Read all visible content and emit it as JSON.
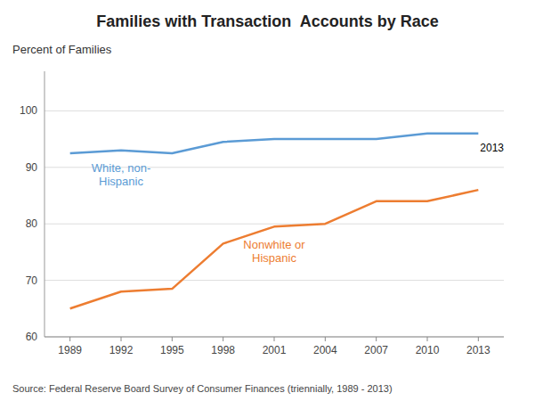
{
  "chart_data": {
    "type": "line",
    "title": "Families with Transaction  Accounts by Race",
    "y_label": "Percent of Families",
    "source": "Source: Federal Reserve Board Survey of Consumer Finances (triennially, 1989 - 2013)",
    "annotations": [
      "2013"
    ],
    "x": [
      1989,
      1992,
      1995,
      1998,
      2001,
      2004,
      2007,
      2010,
      2013
    ],
    "series": [
      {
        "name": "White, non-\nHispanic",
        "color": "#5B9BD5",
        "values": [
          92.5,
          93.0,
          92.5,
          94.5,
          95.0,
          95.0,
          95.0,
          96.0,
          96.0
        ]
      },
      {
        "name": "Nonwhite or\nHispanic",
        "color": "#ED7D31",
        "values": [
          65.0,
          68.0,
          68.5,
          76.5,
          79.5,
          80.0,
          84.0,
          84.0,
          86.0
        ]
      }
    ],
    "xlim": [
      1987.5,
      2014.5
    ],
    "xticks": [
      1989,
      1992,
      1995,
      1998,
      2001,
      2004,
      2007,
      2010,
      2013
    ],
    "ylim": [
      60,
      107
    ],
    "yticks": [
      60,
      70,
      80,
      90,
      100
    ],
    "grid": true
  }
}
